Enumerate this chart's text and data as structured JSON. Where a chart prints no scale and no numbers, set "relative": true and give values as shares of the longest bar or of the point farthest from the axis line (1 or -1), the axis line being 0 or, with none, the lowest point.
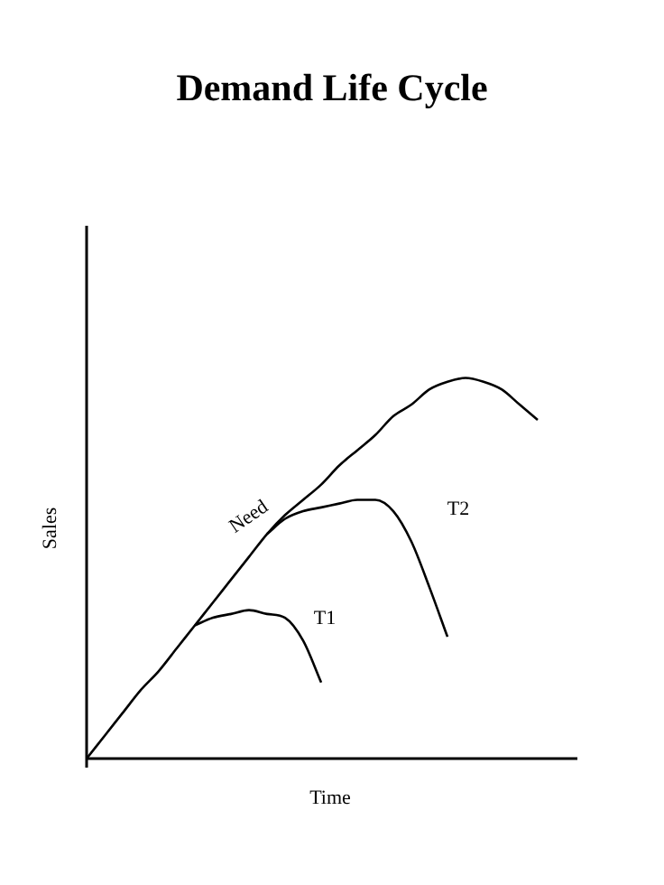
{
  "chart_data": {
    "type": "line",
    "title": "Demand Life Cycle",
    "xlabel": "Time",
    "ylabel": "Sales",
    "relative": true,
    "marker": "none",
    "line_style": "solid",
    "legend": false,
    "categories": [
      null,
      null,
      null,
      null,
      null,
      null,
      null,
      null,
      null,
      null,
      null,
      null,
      null,
      null,
      null,
      null,
      null,
      null,
      null,
      null,
      null,
      null,
      null,
      null,
      null,
      null,
      null
    ],
    "series": [
      {
        "name": "Need",
        "color": "#000000",
        "values": [
          0,
          0.06,
          0.12,
          0.18,
          0.23,
          0.29,
          0.35,
          0.41,
          0.47,
          0.53,
          0.59,
          0.64,
          0.68,
          0.72,
          0.77,
          0.81,
          0.85,
          0.9,
          0.93,
          0.97,
          0.99,
          1,
          0.99,
          0.97,
          0.93,
          0.89,
          null
        ]
      },
      {
        "name": "T1",
        "color": "#000000",
        "values": [
          null,
          null,
          null,
          null,
          null,
          null,
          0.35,
          0.37,
          0.38,
          0.39,
          0.38,
          0.37,
          0.31,
          0.2,
          null,
          null,
          null,
          null,
          null,
          null,
          null,
          null,
          null,
          null,
          null,
          null,
          null
        ]
      },
      {
        "name": "T2",
        "color": "#000000",
        "values": [
          null,
          null,
          null,
          null,
          null,
          null,
          null,
          null,
          null,
          null,
          0.59,
          0.63,
          0.65,
          0.66,
          0.67,
          0.68,
          0.68,
          0.65,
          0.57,
          0.45,
          0.32,
          null,
          null,
          null,
          null,
          null,
          null
        ]
      }
    ]
  }
}
